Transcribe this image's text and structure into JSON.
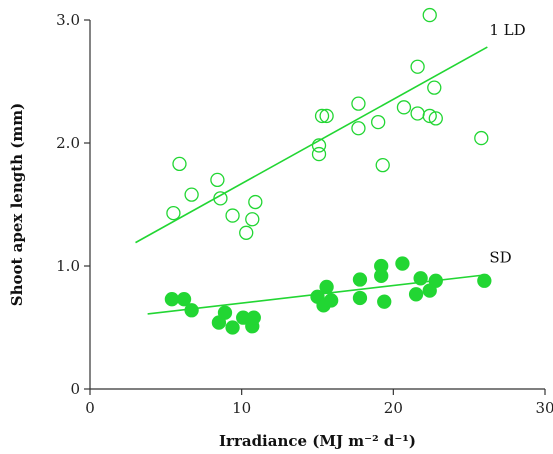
{
  "chart_data": {
    "type": "scatter",
    "title": "",
    "xlabel": "Irradiance (MJ m⁻² d⁻¹)",
    "ylabel": "Shoot apex length (mm)",
    "xlim": [
      0,
      30
    ],
    "ylim": [
      0,
      3.0
    ],
    "x_ticks": [
      0,
      10,
      20,
      30
    ],
    "y_ticks": [
      0,
      1.0,
      2.0,
      3.0
    ],
    "x_tick_labels": [
      "0",
      "10",
      "20",
      "30"
    ],
    "y_tick_labels": [
      "0",
      "1.0",
      "2.0",
      "3.0"
    ],
    "grid": false,
    "color": "#22d633",
    "series": [
      {
        "name": "1 LD",
        "marker": "open-circle",
        "points": [
          [
            5.5,
            1.43
          ],
          [
            5.9,
            1.83
          ],
          [
            6.7,
            1.58
          ],
          [
            8.4,
            1.7
          ],
          [
            8.6,
            1.55
          ],
          [
            9.4,
            1.41
          ],
          [
            10.3,
            1.27
          ],
          [
            10.7,
            1.38
          ],
          [
            10.9,
            1.52
          ],
          [
            15.1,
            1.91
          ],
          [
            15.1,
            1.98
          ],
          [
            15.3,
            2.22
          ],
          [
            15.6,
            2.22
          ],
          [
            17.7,
            2.32
          ],
          [
            17.7,
            2.12
          ],
          [
            19.0,
            2.17
          ],
          [
            19.3,
            1.82
          ],
          [
            20.7,
            2.29
          ],
          [
            21.6,
            2.62
          ],
          [
            21.6,
            2.24
          ],
          [
            22.4,
            3.04
          ],
          [
            22.4,
            2.22
          ],
          [
            22.8,
            2.2
          ],
          [
            22.7,
            2.45
          ],
          [
            25.8,
            2.04
          ]
        ],
        "trend": [
          [
            3.0,
            1.19
          ],
          [
            26.2,
            2.78
          ]
        ]
      },
      {
        "name": "SD",
        "marker": "filled-circle",
        "points": [
          [
            5.4,
            0.73
          ],
          [
            6.2,
            0.73
          ],
          [
            6.7,
            0.64
          ],
          [
            8.5,
            0.54
          ],
          [
            8.9,
            0.62
          ],
          [
            9.4,
            0.5
          ],
          [
            10.1,
            0.58
          ],
          [
            10.7,
            0.51
          ],
          [
            10.8,
            0.58
          ],
          [
            15.0,
            0.75
          ],
          [
            15.4,
            0.68
          ],
          [
            15.6,
            0.83
          ],
          [
            15.9,
            0.72
          ],
          [
            17.8,
            0.89
          ],
          [
            17.8,
            0.74
          ],
          [
            19.2,
            1.0
          ],
          [
            19.2,
            0.92
          ],
          [
            19.4,
            0.71
          ],
          [
            20.6,
            1.02
          ],
          [
            21.5,
            0.77
          ],
          [
            21.8,
            0.9
          ],
          [
            22.4,
            0.8
          ],
          [
            22.8,
            0.88
          ],
          [
            26.0,
            0.88
          ]
        ],
        "trend": [
          [
            3.8,
            0.61
          ],
          [
            26.2,
            0.93
          ]
        ]
      }
    ]
  }
}
